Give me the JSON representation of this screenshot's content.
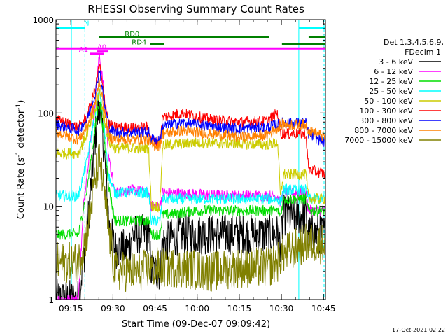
{
  "chart_data": {
    "type": "line",
    "title": "RHESSI Observing Summary Count Rates",
    "xlabel": "Start Time (09-Dec-07 09:09:42)",
    "ylabel_main": "Count Rate (s",
    "ylabel_sup1": "-1",
    "ylabel_mid": " detector",
    "ylabel_sup2": "-1",
    "ylabel_end": ")",
    "x_unit": "minutes after 09:09:42 UT",
    "xlim": [
      0,
      96
    ],
    "ylim": [
      1,
      1000
    ],
    "yscale": "log",
    "x_ticks": [
      {
        "minute": 5.3,
        "label": "09:15"
      },
      {
        "minute": 20.3,
        "label": "09:30"
      },
      {
        "minute": 35.3,
        "label": "09:45"
      },
      {
        "minute": 50.3,
        "label": "10:00"
      },
      {
        "minute": 65.3,
        "label": "10:15"
      },
      {
        "minute": 80.3,
        "label": "10:30"
      },
      {
        "minute": 95.3,
        "label": "10:45"
      }
    ],
    "y_ticks": [
      {
        "value": 1,
        "label": "1"
      },
      {
        "value": 10,
        "label": "10"
      },
      {
        "value": 100,
        "label": "100"
      },
      {
        "value": 1000,
        "label": "1000"
      }
    ],
    "legend": {
      "header1": "Det 1,3,4,5,6,9,",
      "header2": "FDecim 1",
      "position": "right",
      "items": [
        {
          "label": "3 - 6 keV",
          "color": "#000000"
        },
        {
          "label": "6 - 12 keV",
          "color": "#ff00ff"
        },
        {
          "label": "12 - 25 keV",
          "color": "#00dd00"
        },
        {
          "label": "25 - 50 keV",
          "color": "#00ffff"
        },
        {
          "label": "50 - 100 keV",
          "color": "#cccc00"
        },
        {
          "label": "100 - 300 keV",
          "color": "#ff0000"
        },
        {
          "label": "300 - 800 keV",
          "color": "#0000ff"
        },
        {
          "label": "800 - 7000 keV",
          "color": "#ff8000"
        },
        {
          "label": "7000 - 15000 keV",
          "color": "#808000"
        }
      ]
    },
    "series": [
      {
        "name": "3 - 6 keV",
        "color": "#000000",
        "points": [
          [
            0,
            1
          ],
          [
            8,
            1
          ],
          [
            11,
            5
          ],
          [
            14,
            55
          ],
          [
            15.5,
            140
          ],
          [
            17,
            45
          ],
          [
            19,
            6
          ],
          [
            21,
            3.5
          ],
          [
            26,
            3.5
          ],
          [
            27,
            5
          ],
          [
            33,
            5
          ],
          [
            34,
            2
          ],
          [
            37,
            2
          ],
          [
            38,
            4
          ],
          [
            44,
            5
          ],
          [
            60,
            5
          ],
          [
            75,
            5
          ],
          [
            79,
            5
          ],
          [
            80,
            4
          ],
          [
            81,
            8
          ],
          [
            89,
            8
          ],
          [
            90,
            5
          ],
          [
            96,
            5
          ]
        ]
      },
      {
        "name": "6 - 12 keV",
        "color": "#ff00ff",
        "points": [
          [
            0,
            1
          ],
          [
            8,
            1
          ],
          [
            10,
            12
          ],
          [
            14,
            140
          ],
          [
            15.5,
            430
          ],
          [
            17,
            180
          ],
          [
            19,
            30
          ],
          [
            21,
            14
          ],
          [
            26,
            15
          ],
          [
            27,
            15
          ],
          [
            33,
            14
          ],
          [
            34,
            10
          ],
          [
            37,
            10
          ],
          [
            38,
            14
          ],
          [
            60,
            13
          ],
          [
            75,
            13
          ],
          [
            79,
            13
          ],
          [
            80,
            11
          ],
          [
            81,
            14
          ],
          [
            89,
            14
          ],
          [
            90,
            9
          ],
          [
            96,
            9
          ]
        ]
      },
      {
        "name": "12 - 25 keV",
        "color": "#00dd00",
        "points": [
          [
            0,
            5
          ],
          [
            8,
            5
          ],
          [
            11,
            15
          ],
          [
            14,
            70
          ],
          [
            15.5,
            140
          ],
          [
            17,
            60
          ],
          [
            19,
            15
          ],
          [
            21,
            7
          ],
          [
            26,
            7
          ],
          [
            27,
            7
          ],
          [
            33,
            7
          ],
          [
            34,
            5
          ],
          [
            37,
            5
          ],
          [
            38,
            8
          ],
          [
            50,
            9
          ],
          [
            60,
            9
          ],
          [
            75,
            9
          ],
          [
            79,
            9
          ],
          [
            80,
            8
          ],
          [
            81,
            12
          ],
          [
            89,
            12
          ],
          [
            90,
            9
          ],
          [
            96,
            9
          ]
        ]
      },
      {
        "name": "25 - 50 keV",
        "color": "#00ffff",
        "points": [
          [
            0,
            13
          ],
          [
            8,
            13
          ],
          [
            11,
            30
          ],
          [
            14,
            100
          ],
          [
            15.5,
            180
          ],
          [
            17,
            80
          ],
          [
            19,
            20
          ],
          [
            21,
            14
          ],
          [
            26,
            14
          ],
          [
            27,
            14
          ],
          [
            33,
            14
          ],
          [
            34,
            7
          ],
          [
            37,
            7
          ],
          [
            38,
            12
          ],
          [
            50,
            12
          ],
          [
            60,
            12
          ],
          [
            75,
            12
          ],
          [
            79,
            12
          ],
          [
            80,
            11
          ],
          [
            81,
            15
          ],
          [
            89,
            15
          ],
          [
            90,
            12
          ],
          [
            96,
            12
          ]
        ]
      },
      {
        "name": "50 - 100 keV",
        "color": "#cccc00",
        "points": [
          [
            0,
            37
          ],
          [
            8,
            37
          ],
          [
            11,
            60
          ],
          [
            14,
            105
          ],
          [
            15.5,
            175
          ],
          [
            17,
            90
          ],
          [
            19,
            48
          ],
          [
            21,
            42
          ],
          [
            26,
            42
          ],
          [
            27,
            42
          ],
          [
            33,
            42
          ],
          [
            34,
            10
          ],
          [
            37,
            10
          ],
          [
            38,
            45
          ],
          [
            50,
            48
          ],
          [
            60,
            47
          ],
          [
            75,
            46
          ],
          [
            79,
            48
          ],
          [
            80,
            12
          ],
          [
            81,
            22
          ],
          [
            89,
            22
          ],
          [
            90,
            12
          ],
          [
            96,
            12
          ]
        ]
      },
      {
        "name": "100 - 300 keV",
        "color": "#ff0000",
        "points": [
          [
            0,
            85
          ],
          [
            8,
            70
          ],
          [
            11,
            90
          ],
          [
            14,
            180
          ],
          [
            15.5,
            330
          ],
          [
            17,
            160
          ],
          [
            19,
            75
          ],
          [
            21,
            70
          ],
          [
            26,
            70
          ],
          [
            27,
            70
          ],
          [
            33,
            70
          ],
          [
            34,
            50
          ],
          [
            37,
            50
          ],
          [
            38,
            90
          ],
          [
            45,
            100
          ],
          [
            55,
            85
          ],
          [
            65,
            80
          ],
          [
            75,
            82
          ],
          [
            79,
            100
          ],
          [
            80,
            60
          ],
          [
            89,
            60
          ],
          [
            90,
            25
          ],
          [
            96,
            22
          ]
        ]
      },
      {
        "name": "300 - 800 keV",
        "color": "#0000ff",
        "points": [
          [
            0,
            75
          ],
          [
            8,
            65
          ],
          [
            11,
            85
          ],
          [
            14,
            160
          ],
          [
            15.5,
            300
          ],
          [
            17,
            140
          ],
          [
            19,
            68
          ],
          [
            21,
            62
          ],
          [
            26,
            62
          ],
          [
            27,
            62
          ],
          [
            33,
            62
          ],
          [
            34,
            52
          ],
          [
            37,
            52
          ],
          [
            38,
            72
          ],
          [
            45,
            78
          ],
          [
            55,
            72
          ],
          [
            65,
            68
          ],
          [
            75,
            70
          ],
          [
            79,
            75
          ],
          [
            80,
            78
          ],
          [
            89,
            78
          ],
          [
            90,
            60
          ],
          [
            96,
            48
          ]
        ]
      },
      {
        "name": "800 - 7000 keV",
        "color": "#ff8000",
        "points": [
          [
            0,
            62
          ],
          [
            8,
            52
          ],
          [
            11,
            70
          ],
          [
            14,
            130
          ],
          [
            15.5,
            230
          ],
          [
            17,
            115
          ],
          [
            19,
            55
          ],
          [
            21,
            52
          ],
          [
            26,
            52
          ],
          [
            27,
            52
          ],
          [
            33,
            52
          ],
          [
            34,
            45
          ],
          [
            37,
            45
          ],
          [
            38,
            60
          ],
          [
            45,
            65
          ],
          [
            55,
            60
          ],
          [
            65,
            55
          ],
          [
            75,
            58
          ],
          [
            79,
            70
          ],
          [
            80,
            75
          ],
          [
            89,
            75
          ],
          [
            90,
            65
          ],
          [
            96,
            55
          ]
        ]
      },
      {
        "name": "7000 - 15000 keV",
        "color": "#808000",
        "points": [
          [
            0,
            2.5
          ],
          [
            8,
            2.5
          ],
          [
            11,
            5
          ],
          [
            14,
            20
          ],
          [
            15.5,
            32
          ],
          [
            17,
            15
          ],
          [
            19,
            5
          ],
          [
            21,
            2
          ],
          [
            30,
            2
          ],
          [
            34,
            2.2
          ],
          [
            44,
            2.2
          ],
          [
            55,
            2
          ],
          [
            65,
            2.2
          ],
          [
            75,
            2.2
          ],
          [
            79,
            2.5
          ],
          [
            80,
            3
          ],
          [
            89,
            4
          ],
          [
            96,
            4
          ]
        ]
      }
    ],
    "annotations": {
      "vertical_lines": [
        {
          "minute": 5.5,
          "style": "solid",
          "color": "#00ffff"
        },
        {
          "minute": 10.3,
          "style": "dashed",
          "color": "#00ffff"
        },
        {
          "minute": 86.5,
          "style": "solid",
          "color": "#00ffff"
        },
        {
          "minute": 95.5,
          "style": "dashed",
          "color": "#00ffff"
        }
      ],
      "bars": [
        {
          "label": "N",
          "color": "#00ffff",
          "y": 820,
          "x0": 0,
          "x1": 10.3
        },
        {
          "label": "",
          "color": "#00ffff",
          "y": 820,
          "x0": 86.5,
          "x1": 96
        },
        {
          "label": "RD0",
          "color": "#008000",
          "y": 650,
          "x0": 15.3,
          "x1": 76
        },
        {
          "label": "",
          "color": "#008000",
          "y": 650,
          "x0": 90,
          "x1": 96
        },
        {
          "label": "RD4",
          "color": "#008000",
          "y": 550,
          "x0": 33.5,
          "x1": 38.5
        },
        {
          "label": "",
          "color": "#008000",
          "y": 550,
          "x0": 80.5,
          "x1": 96
        },
        {
          "label": "",
          "color": "#ff00ff",
          "y": 490,
          "x0": 0,
          "x1": 96
        },
        {
          "label": "A0",
          "color": "#ff00ff",
          "y": 455,
          "x0": 14.7,
          "x1": 18.7
        },
        {
          "label": "A1",
          "color": "#ff00ff",
          "y": 430,
          "x0": 12,
          "x1": 17
        }
      ]
    }
  },
  "footer": {
    "timestamp": "17-Oct-2021 02:22"
  }
}
